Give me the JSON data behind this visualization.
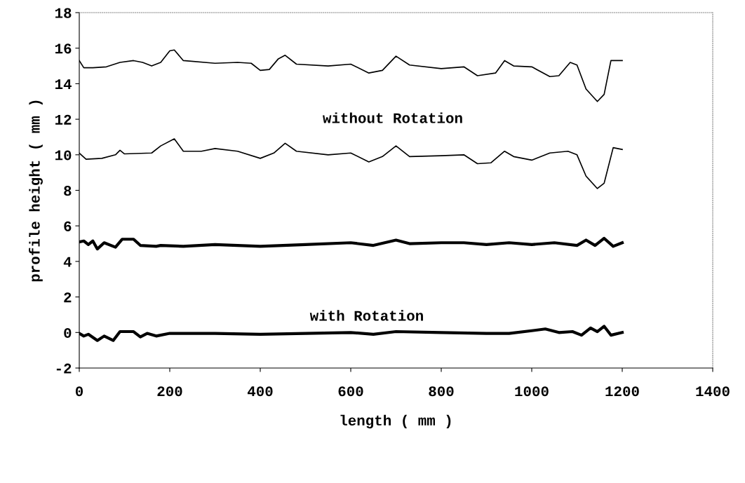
{
  "chart_data": {
    "type": "line",
    "xlabel": "length ( mm )",
    "ylabel": "profile height ( mm )",
    "xlim": [
      0,
      1400
    ],
    "ylim": [
      -2,
      18
    ],
    "xticks": [
      0,
      200,
      400,
      600,
      800,
      1000,
      1200,
      1400
    ],
    "yticks": [
      -2,
      0,
      2,
      4,
      6,
      8,
      10,
      12,
      14,
      16,
      18
    ],
    "grid": false,
    "legend": false,
    "marker": "none",
    "line_style": "solid",
    "annotations": [
      "without Rotation",
      "with Rotation"
    ],
    "series": [
      {
        "color": "#000000",
        "x": [
          0,
          10,
          30,
          60,
          90,
          120,
          140,
          160,
          180,
          200,
          210,
          230,
          300,
          350,
          380,
          400,
          420,
          440,
          455,
          480,
          550,
          600,
          640,
          670,
          700,
          730,
          800,
          850,
          880,
          920,
          940,
          960,
          1000,
          1040,
          1060,
          1085,
          1100,
          1120,
          1145,
          1160,
          1175,
          1200
        ],
        "values": [
          15.3,
          14.9,
          14.9,
          14.95,
          15.2,
          15.3,
          15.2,
          15.0,
          15.2,
          15.85,
          15.9,
          15.3,
          15.15,
          15.2,
          15.15,
          14.75,
          14.8,
          15.4,
          15.6,
          15.1,
          15.0,
          15.1,
          14.6,
          14.75,
          15.55,
          15.05,
          14.85,
          14.95,
          14.45,
          14.6,
          15.3,
          15.0,
          14.95,
          14.4,
          14.45,
          15.2,
          15.05,
          13.7,
          13.0,
          13.4,
          15.3,
          15.3
        ]
      },
      {
        "color": "#000000",
        "x": [
          0,
          15,
          50,
          80,
          90,
          100,
          160,
          180,
          210,
          230,
          270,
          300,
          350,
          400,
          430,
          455,
          480,
          550,
          600,
          640,
          670,
          700,
          730,
          800,
          850,
          880,
          910,
          940,
          960,
          1000,
          1040,
          1080,
          1100,
          1120,
          1145,
          1160,
          1180,
          1200
        ],
        "values": [
          10.1,
          9.75,
          9.8,
          10.0,
          10.25,
          10.05,
          10.1,
          10.5,
          10.9,
          10.2,
          10.2,
          10.35,
          10.2,
          9.8,
          10.1,
          10.65,
          10.2,
          10.0,
          10.1,
          9.6,
          9.9,
          10.5,
          9.9,
          9.95,
          10.0,
          9.5,
          9.55,
          10.2,
          9.9,
          9.7,
          10.1,
          10.2,
          10.0,
          8.8,
          8.1,
          8.4,
          10.4,
          10.3
        ]
      },
      {
        "color": "#000000",
        "x": [
          0,
          10,
          20,
          30,
          40,
          55,
          80,
          95,
          120,
          135,
          170,
          180,
          230,
          300,
          400,
          500,
          600,
          650,
          700,
          730,
          800,
          850,
          900,
          950,
          1000,
          1050,
          1100,
          1120,
          1140,
          1160,
          1180,
          1200
        ],
        "values": [
          5.1,
          5.15,
          4.95,
          5.15,
          4.7,
          5.05,
          4.8,
          5.25,
          5.25,
          4.9,
          4.85,
          4.9,
          4.85,
          4.95,
          4.85,
          4.95,
          5.05,
          4.9,
          5.2,
          5.0,
          5.05,
          5.05,
          4.95,
          5.05,
          4.95,
          5.05,
          4.9,
          5.2,
          4.9,
          5.3,
          4.85,
          5.05
        ]
      },
      {
        "color": "#000000",
        "x": [
          0,
          10,
          20,
          40,
          55,
          75,
          90,
          120,
          135,
          150,
          170,
          200,
          300,
          400,
          500,
          600,
          650,
          700,
          800,
          900,
          950,
          1000,
          1030,
          1060,
          1090,
          1110,
          1130,
          1145,
          1160,
          1175,
          1200
        ],
        "values": [
          -0.05,
          -0.2,
          -0.1,
          -0.45,
          -0.2,
          -0.45,
          0.05,
          0.05,
          -0.25,
          -0.05,
          -0.2,
          -0.05,
          -0.05,
          -0.1,
          -0.05,
          0.0,
          -0.1,
          0.05,
          0.0,
          -0.05,
          -0.05,
          0.1,
          0.2,
          0.0,
          0.05,
          -0.15,
          0.25,
          0.05,
          0.35,
          -0.15,
          0.0
        ]
      }
    ]
  }
}
